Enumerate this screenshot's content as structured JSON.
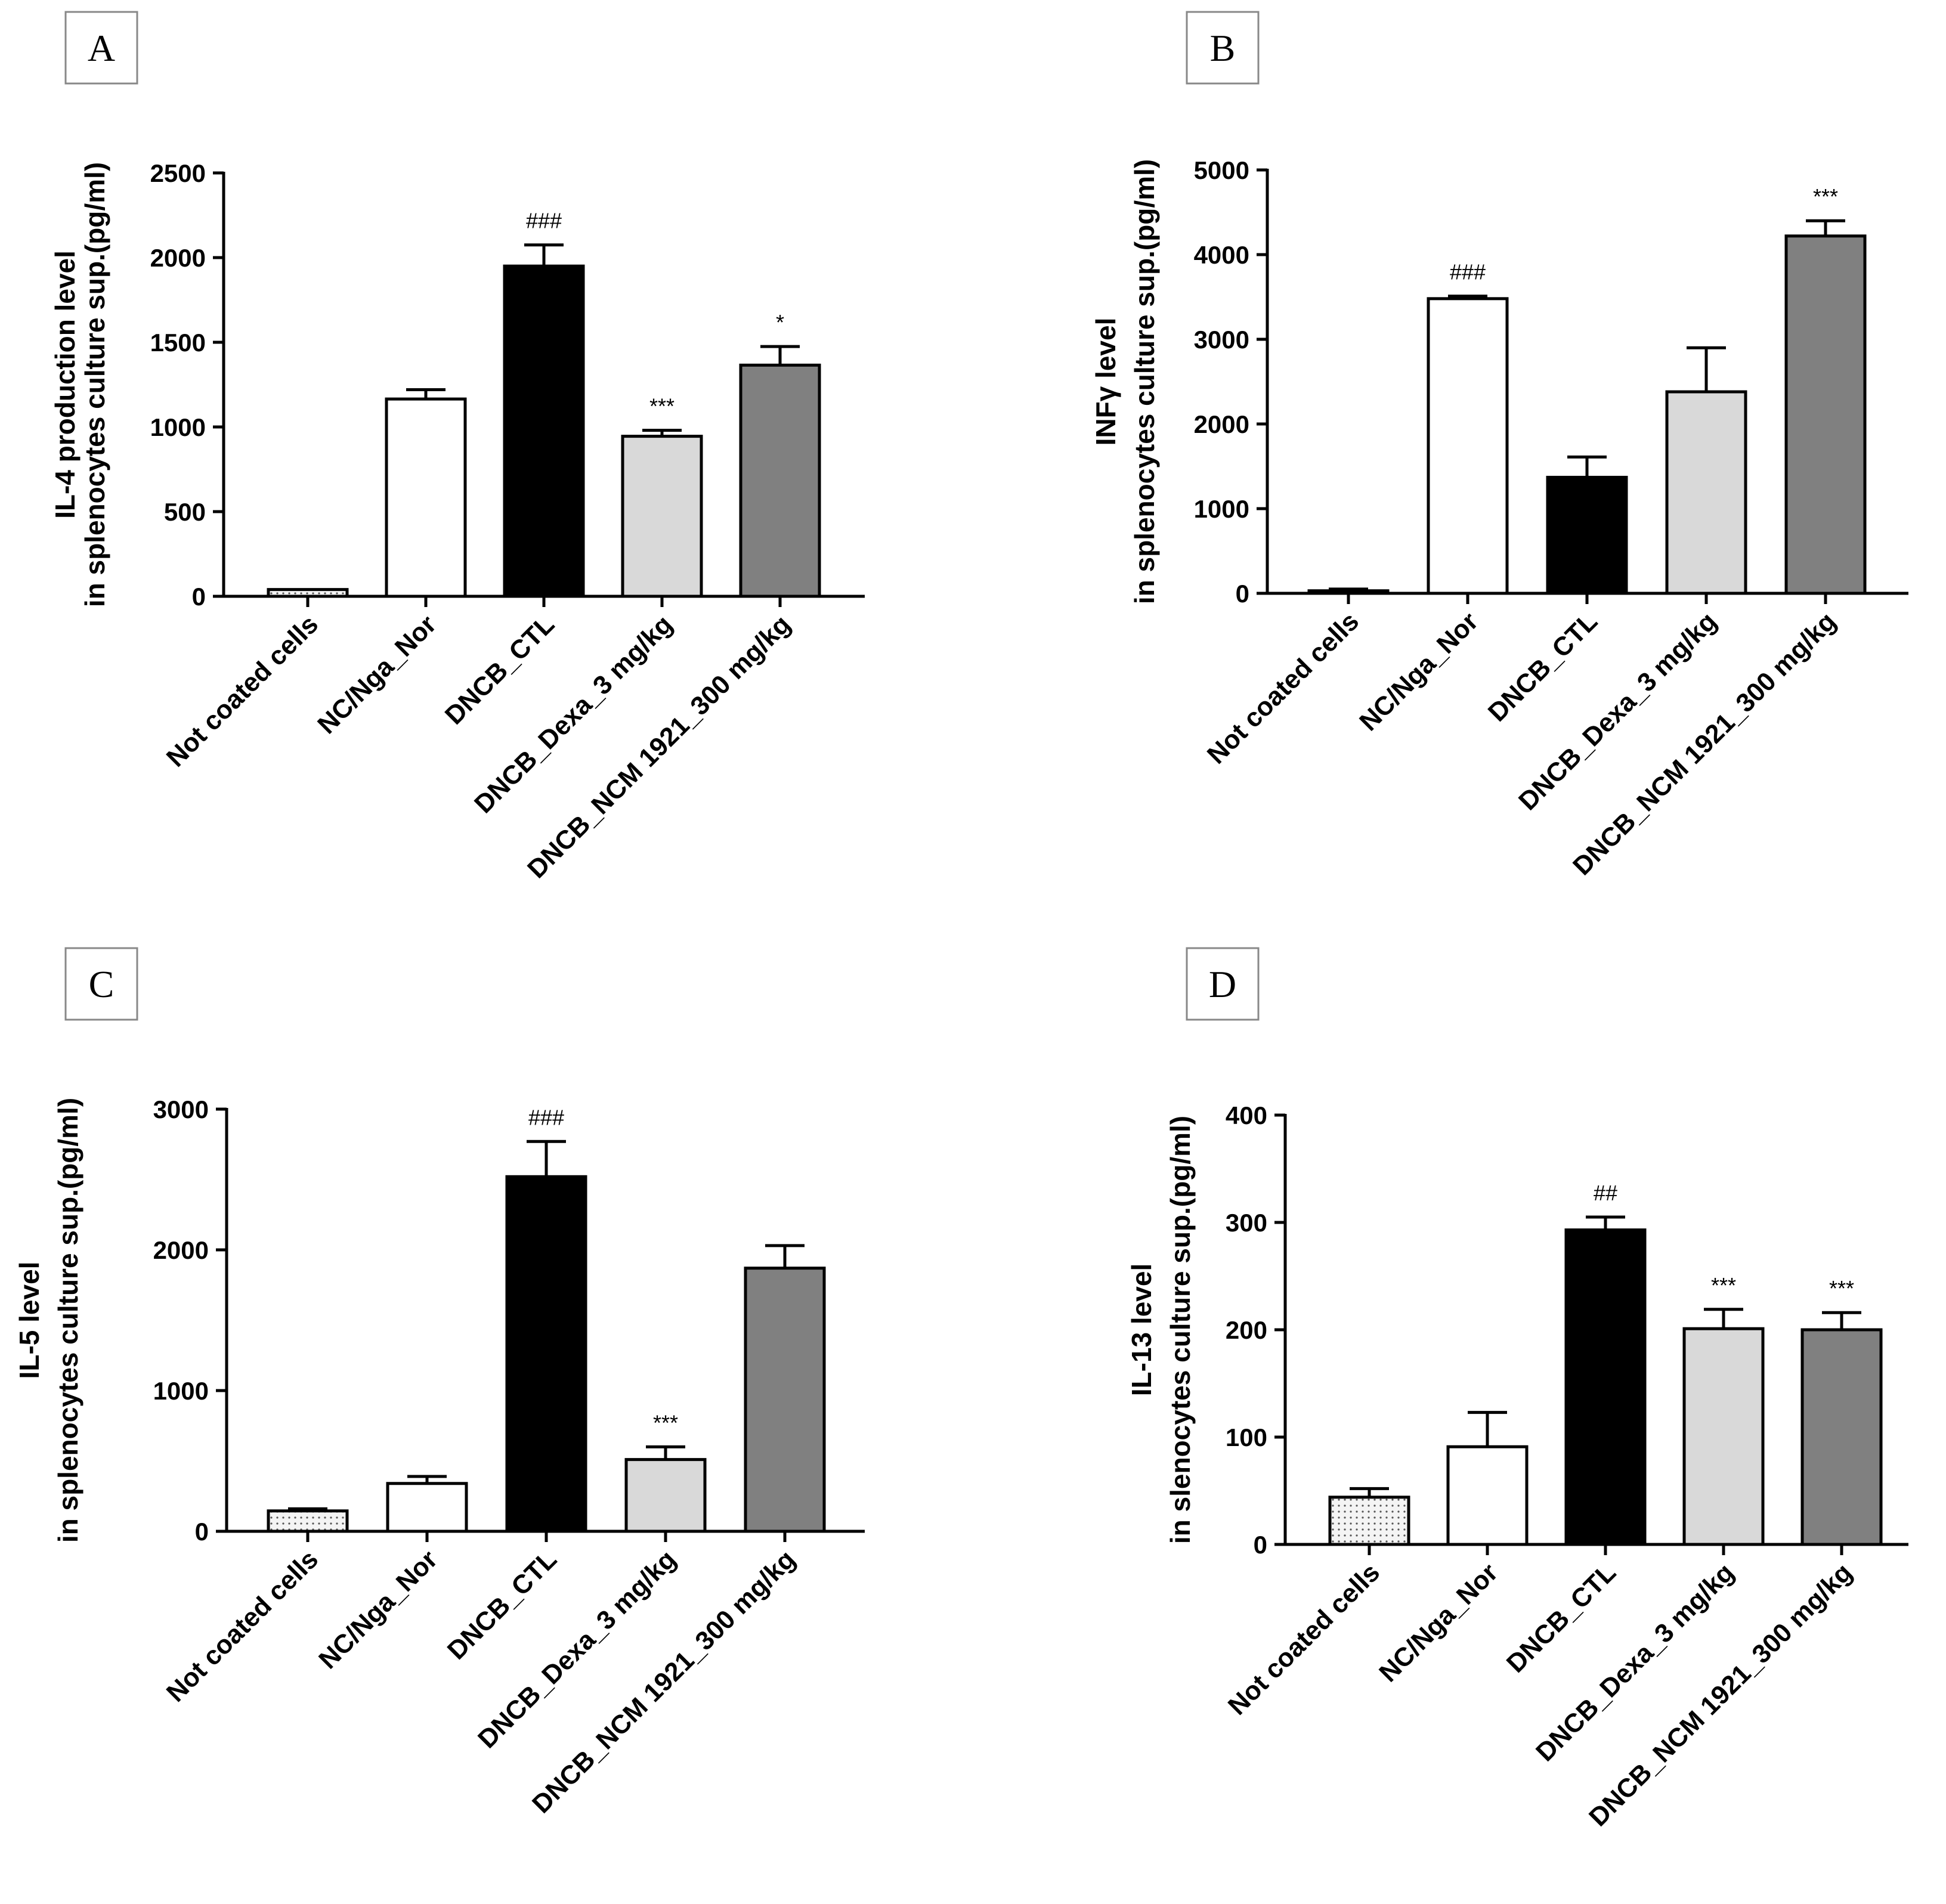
{
  "colors": {
    "not_coated": "#f4f4f4",
    "nc_nga_nor": "#ffffff",
    "dncb_ctl": "#000000",
    "dncb_dexa": "#d9d9d9",
    "dncb_ncm": "#808080",
    "axis": "#000000"
  },
  "chart_data": [
    {
      "panel": "A",
      "type": "bar",
      "categories": [
        "Not coated cells",
        "NC/Nga_Nor",
        "DNCB_CTL",
        "DNCB_Dexa_3 mg/kg",
        "DNCB_NCM 1921_300 mg/kg"
      ],
      "values": [
        40,
        1165,
        1950,
        945,
        1365
      ],
      "errors": [
        0,
        55,
        125,
        35,
        110
      ],
      "significance": [
        "",
        "",
        "###",
        "***",
        "*"
      ],
      "ylabel_lines": [
        "IL-4 production level",
        "in splenocytes culture sup.(pg/ml)"
      ],
      "ylim": [
        0,
        2500
      ],
      "yticks": [
        0,
        500,
        1000,
        1500,
        2000,
        2500
      ]
    },
    {
      "panel": "B",
      "type": "bar",
      "categories": [
        "Not coated cells",
        "NC/Nga_Nor",
        "DNCB_CTL",
        "DNCB_Dexa_3 mg/kg",
        "DNCB_NCM 1921_300 mg/kg"
      ],
      "values": [
        30,
        3480,
        1370,
        2380,
        4220
      ],
      "errors": [
        20,
        30,
        240,
        520,
        180
      ],
      "significance": [
        "",
        "###",
        "",
        "",
        "***"
      ],
      "ylabel_lines": [
        "INFγ level",
        "in splenocytes culture sup.(pg/ml)"
      ],
      "ylim": [
        0,
        5000
      ],
      "yticks": [
        0,
        1000,
        2000,
        3000,
        4000,
        5000
      ]
    },
    {
      "panel": "C",
      "type": "bar",
      "categories": [
        "Not coated cells",
        "NC/Nga_Nor",
        "DNCB_CTL",
        "DNCB_Dexa_3 mg/kg",
        "DNCB_NCM 1921_300 mg/kg"
      ],
      "values": [
        145,
        340,
        2520,
        510,
        1870
      ],
      "errors": [
        15,
        50,
        250,
        90,
        160
      ],
      "significance": [
        "",
        "",
        "###",
        "***",
        ""
      ],
      "ylabel_lines": [
        "IL-5 level",
        "in splenocytes culture sup.(pg/ml)"
      ],
      "ylim": [
        0,
        3000
      ],
      "yticks": [
        0,
        1000,
        2000,
        3000
      ]
    },
    {
      "panel": "D",
      "type": "bar",
      "categories": [
        "Not coated cells",
        "NC/Nga_Nor",
        "DNCB_CTL",
        "DNCB_Dexa_3 mg/kg",
        "DNCB_NCM 1921_300 mg/kg"
      ],
      "values": [
        44,
        91,
        293,
        201,
        200
      ],
      "errors": [
        8,
        32,
        12,
        18,
        16
      ],
      "significance": [
        "",
        "",
        "##",
        "***",
        "***"
      ],
      "ylabel_lines": [
        "IL-13 level",
        "in slenocytes culture sup.(pg/ml)"
      ],
      "ylim": [
        0,
        400
      ],
      "yticks": [
        0,
        100,
        200,
        300,
        400
      ]
    }
  ]
}
